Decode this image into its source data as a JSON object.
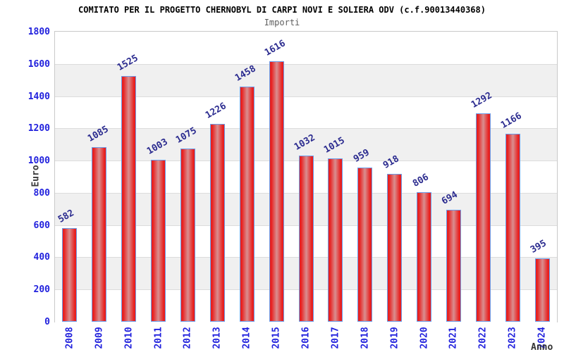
{
  "chart_data": {
    "type": "bar",
    "title": "COMITATO PER IL PROGETTO CHERNOBYL DI CARPI NOVI E SOLIERA ODV (c.f.90013440368)",
    "subtitle": "Importi",
    "ylabel": "Euro",
    "xlabel": "Anno",
    "categories": [
      "2008",
      "2009",
      "2010",
      "2011",
      "2012",
      "2013",
      "2014",
      "2015",
      "2016",
      "2017",
      "2018",
      "2019",
      "2020",
      "2021",
      "2022",
      "2023",
      "2024"
    ],
    "values": [
      582,
      1085,
      1525,
      1003,
      1075,
      1226,
      1458,
      1616,
      1032,
      1015,
      959,
      918,
      806,
      694,
      1292,
      1166,
      395
    ],
    "ylim": [
      0,
      1800
    ],
    "ytick_step": 200,
    "grid": "on",
    "legend": "none",
    "colors": {
      "bar_edge_red": "#e8201f",
      "bar_center_pink": "#d98f90",
      "bar_border_blue": "#6b9ce8",
      "tick_label_blue": "#2222dd",
      "value_label_navy": "#2b2b8f",
      "band_gray": "#f0f0f0",
      "band_white": "#ffffff",
      "gridline_gray": "#dcdcdc",
      "plot_border_gray": "#c9c9c9",
      "axis_title_gray": "#3a3a3a",
      "subtitle_gray": "#5f5f5f",
      "title_black": "#000000"
    }
  }
}
